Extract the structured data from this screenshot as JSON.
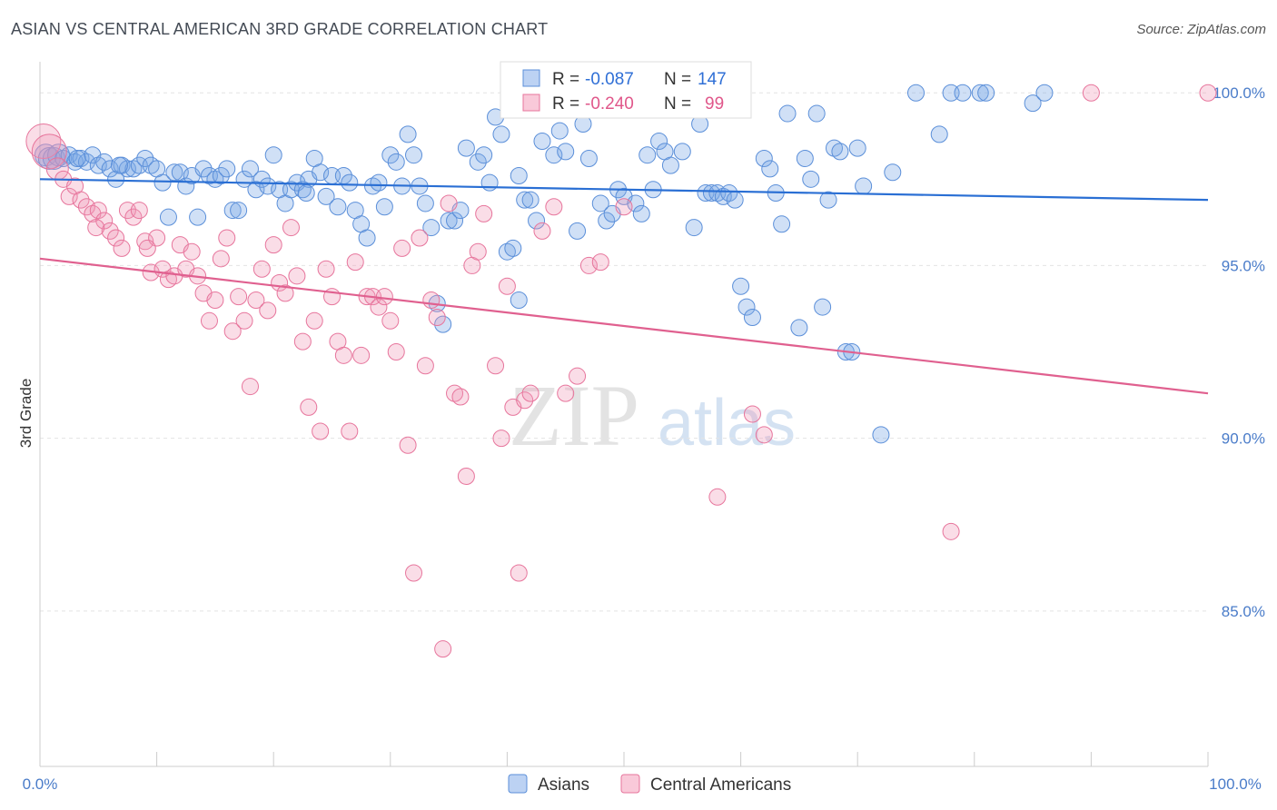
{
  "title": "ASIAN VS CENTRAL AMERICAN 3RD GRADE CORRELATION CHART",
  "source": "Source: ZipAtlas.com",
  "watermark": {
    "zip": "ZIP",
    "atlas": "atlas"
  },
  "chart_data": {
    "type": "scatter",
    "ylabel": "3rd Grade",
    "xlim": [
      0,
      100
    ],
    "ylim": [
      80.5,
      100.9
    ],
    "x_ticks": [
      "0.0%",
      "100.0%"
    ],
    "y_ticks": [
      {
        "value": 100,
        "label": "100.0%"
      },
      {
        "value": 95,
        "label": "95.0%"
      },
      {
        "value": 90,
        "label": "90.0%"
      },
      {
        "value": 85,
        "label": "85.0%"
      }
    ],
    "grid": true,
    "legend_top": [
      {
        "r_label": "R =",
        "r_value": "-0.087",
        "n_label": "N =",
        "n_value": "147",
        "color": "#5b8fd9"
      },
      {
        "r_label": "R =",
        "r_value": "-0.240",
        "n_label": "N =",
        "n_value": "99",
        "color": "#e7759c"
      }
    ],
    "series": [
      {
        "name": "Asians",
        "color": "#5b8fd9",
        "trend": {
          "x": [
            0,
            100
          ],
          "y": [
            97.5,
            96.9
          ]
        },
        "points": [
          [
            0.5,
            98.2
          ],
          [
            0.8,
            98.1
          ],
          [
            1.2,
            98.1
          ],
          [
            1.6,
            98.2
          ],
          [
            2.0,
            98.1
          ],
          [
            2.5,
            98.2
          ],
          [
            3.0,
            98.0
          ],
          [
            3.5,
            98.1
          ],
          [
            4.0,
            98.0
          ],
          [
            4.5,
            98.2
          ],
          [
            5.0,
            97.9
          ],
          [
            5.5,
            98.0
          ],
          [
            6.0,
            97.8
          ],
          [
            6.5,
            97.5
          ],
          [
            7.0,
            97.9
          ],
          [
            7.5,
            97.8
          ],
          [
            8.0,
            97.8
          ],
          [
            8.5,
            97.9
          ],
          [
            9.0,
            98.1
          ],
          [
            9.5,
            97.9
          ],
          [
            10.0,
            97.8
          ],
          [
            10.5,
            97.4
          ],
          [
            11.0,
            96.4
          ],
          [
            11.5,
            97.7
          ],
          [
            12.0,
            97.7
          ],
          [
            12.5,
            97.3
          ],
          [
            13.0,
            97.6
          ],
          [
            13.5,
            96.4
          ],
          [
            14.0,
            97.8
          ],
          [
            14.5,
            97.6
          ],
          [
            15.0,
            97.5
          ],
          [
            15.5,
            97.6
          ],
          [
            16.0,
            97.8
          ],
          [
            16.5,
            96.6
          ],
          [
            17.0,
            96.6
          ],
          [
            17.5,
            97.5
          ],
          [
            18.0,
            97.8
          ],
          [
            18.5,
            97.2
          ],
          [
            19.0,
            97.5
          ],
          [
            19.5,
            97.3
          ],
          [
            20.0,
            98.2
          ],
          [
            20.5,
            97.2
          ],
          [
            21.0,
            96.8
          ],
          [
            21.5,
            97.2
          ],
          [
            22.0,
            97.4
          ],
          [
            22.5,
            97.2
          ],
          [
            23.0,
            97.5
          ],
          [
            23.5,
            98.1
          ],
          [
            24.0,
            97.7
          ],
          [
            24.5,
            97.0
          ],
          [
            25.0,
            97.6
          ],
          [
            25.5,
            96.7
          ],
          [
            26.0,
            97.6
          ],
          [
            27.0,
            96.6
          ],
          [
            27.5,
            96.2
          ],
          [
            28.0,
            95.8
          ],
          [
            28.5,
            97.3
          ],
          [
            29.0,
            97.4
          ],
          [
            29.5,
            96.7
          ],
          [
            30.0,
            98.2
          ],
          [
            30.5,
            98.0
          ],
          [
            31.0,
            97.3
          ],
          [
            31.5,
            98.8
          ],
          [
            32.0,
            98.2
          ],
          [
            32.5,
            97.3
          ],
          [
            33.0,
            96.8
          ],
          [
            33.5,
            96.1
          ],
          [
            34.0,
            93.9
          ],
          [
            34.5,
            93.3
          ],
          [
            35.0,
            96.3
          ],
          [
            35.5,
            96.3
          ],
          [
            36.0,
            96.6
          ],
          [
            36.5,
            98.4
          ],
          [
            37.5,
            98.0
          ],
          [
            38.0,
            98.2
          ],
          [
            38.5,
            97.4
          ],
          [
            39.0,
            99.3
          ],
          [
            39.5,
            98.8
          ],
          [
            40.0,
            95.4
          ],
          [
            40.5,
            95.5
          ],
          [
            41.0,
            97.6
          ],
          [
            41.5,
            96.9
          ],
          [
            42.0,
            96.9
          ],
          [
            42.5,
            96.3
          ],
          [
            43.0,
            98.6
          ],
          [
            44.0,
            98.2
          ],
          [
            44.5,
            98.9
          ],
          [
            45.0,
            98.3
          ],
          [
            46.0,
            96.0
          ],
          [
            46.5,
            99.1
          ],
          [
            47.0,
            98.1
          ],
          [
            48.0,
            96.8
          ],
          [
            48.5,
            96.3
          ],
          [
            49.0,
            96.5
          ],
          [
            49.5,
            97.2
          ],
          [
            50.0,
            97.0
          ],
          [
            51.0,
            96.8
          ],
          [
            51.5,
            96.5
          ],
          [
            52.0,
            98.2
          ],
          [
            52.5,
            97.2
          ],
          [
            53.0,
            98.6
          ],
          [
            53.5,
            98.3
          ],
          [
            54.0,
            97.9
          ],
          [
            55.0,
            98.3
          ],
          [
            56.0,
            96.1
          ],
          [
            56.5,
            99.1
          ],
          [
            57.0,
            97.1
          ],
          [
            57.5,
            97.1
          ],
          [
            58.0,
            97.1
          ],
          [
            58.5,
            97.0
          ],
          [
            59.0,
            97.1
          ],
          [
            59.5,
            96.9
          ],
          [
            60.0,
            94.4
          ],
          [
            60.5,
            93.8
          ],
          [
            61.0,
            93.5
          ],
          [
            62.0,
            98.1
          ],
          [
            62.5,
            97.8
          ],
          [
            63.0,
            97.1
          ],
          [
            63.5,
            96.2
          ],
          [
            64.0,
            99.4
          ],
          [
            65.0,
            93.2
          ],
          [
            65.5,
            98.1
          ],
          [
            66.0,
            97.5
          ],
          [
            66.5,
            99.4
          ],
          [
            67.0,
            93.8
          ],
          [
            67.5,
            96.9
          ],
          [
            68.0,
            98.4
          ],
          [
            68.5,
            98.3
          ],
          [
            69.0,
            92.5
          ],
          [
            69.5,
            92.5
          ],
          [
            70.0,
            98.4
          ],
          [
            70.5,
            97.3
          ],
          [
            72.0,
            90.1
          ],
          [
            73.0,
            97.7
          ],
          [
            75.0,
            100.0
          ],
          [
            77.0,
            98.8
          ],
          [
            78.0,
            100.0
          ],
          [
            79.0,
            100.0
          ],
          [
            80.5,
            100.0
          ],
          [
            81.0,
            100.0
          ],
          [
            85.0,
            99.7
          ],
          [
            86.0,
            100.0
          ],
          [
            3.2,
            98.1
          ],
          [
            6.8,
            97.9
          ],
          [
            22.8,
            97.1
          ],
          [
            26.5,
            97.4
          ],
          [
            41.0,
            94.0
          ]
        ]
      },
      {
        "name": "Central Americans",
        "color": "#e7759c",
        "trend": {
          "x": [
            0,
            100
          ],
          "y": [
            95.2,
            91.3
          ]
        },
        "points": [
          [
            0.3,
            98.6
          ],
          [
            0.8,
            98.3
          ],
          [
            1.5,
            97.8
          ],
          [
            2.0,
            97.5
          ],
          [
            2.5,
            97.0
          ],
          [
            3.0,
            97.3
          ],
          [
            3.5,
            96.9
          ],
          [
            4.0,
            96.7
          ],
          [
            4.5,
            96.5
          ],
          [
            5.0,
            96.6
          ],
          [
            5.5,
            96.3
          ],
          [
            6.0,
            96.0
          ],
          [
            6.5,
            95.8
          ],
          [
            7.0,
            95.5
          ],
          [
            7.5,
            96.6
          ],
          [
            8.0,
            96.4
          ],
          [
            8.5,
            96.6
          ],
          [
            9.0,
            95.7
          ],
          [
            9.5,
            94.8
          ],
          [
            10.0,
            95.8
          ],
          [
            10.5,
            94.9
          ],
          [
            11.0,
            94.6
          ],
          [
            11.5,
            94.7
          ],
          [
            12.0,
            95.6
          ],
          [
            12.5,
            94.9
          ],
          [
            13.0,
            95.4
          ],
          [
            13.5,
            94.7
          ],
          [
            14.0,
            94.2
          ],
          [
            14.5,
            93.4
          ],
          [
            15.0,
            94.0
          ],
          [
            15.5,
            95.2
          ],
          [
            16.0,
            95.8
          ],
          [
            16.5,
            93.1
          ],
          [
            17.0,
            94.1
          ],
          [
            17.5,
            93.4
          ],
          [
            18.0,
            91.5
          ],
          [
            18.5,
            94.0
          ],
          [
            19.0,
            94.9
          ],
          [
            19.5,
            93.7
          ],
          [
            20.0,
            95.6
          ],
          [
            20.5,
            94.5
          ],
          [
            21.0,
            94.2
          ],
          [
            21.5,
            96.1
          ],
          [
            22.0,
            94.7
          ],
          [
            22.5,
            92.8
          ],
          [
            23.0,
            90.9
          ],
          [
            23.5,
            93.4
          ],
          [
            24.0,
            90.2
          ],
          [
            24.5,
            94.9
          ],
          [
            25.0,
            94.1
          ],
          [
            25.5,
            92.8
          ],
          [
            26.0,
            92.4
          ],
          [
            26.5,
            90.2
          ],
          [
            27.0,
            95.1
          ],
          [
            27.5,
            92.4
          ],
          [
            28.0,
            94.1
          ],
          [
            28.5,
            94.1
          ],
          [
            29.0,
            93.8
          ],
          [
            29.5,
            94.1
          ],
          [
            30.0,
            93.4
          ],
          [
            30.5,
            92.5
          ],
          [
            31.0,
            95.5
          ],
          [
            31.5,
            89.8
          ],
          [
            32.0,
            86.1
          ],
          [
            32.5,
            95.8
          ],
          [
            33.0,
            92.1
          ],
          [
            33.5,
            94.0
          ],
          [
            34.0,
            93.5
          ],
          [
            34.5,
            83.9
          ],
          [
            35.0,
            96.8
          ],
          [
            35.5,
            91.3
          ],
          [
            36.0,
            91.2
          ],
          [
            36.5,
            88.9
          ],
          [
            37.0,
            95.0
          ],
          [
            37.5,
            95.4
          ],
          [
            38.0,
            96.5
          ],
          [
            39.0,
            92.1
          ],
          [
            39.5,
            90.0
          ],
          [
            40.0,
            94.4
          ],
          [
            40.5,
            90.9
          ],
          [
            41.0,
            86.1
          ],
          [
            41.5,
            91.1
          ],
          [
            42.0,
            91.3
          ],
          [
            43.0,
            96.0
          ],
          [
            44.0,
            96.7
          ],
          [
            45.0,
            91.3
          ],
          [
            46.0,
            91.8
          ],
          [
            47.0,
            95.0
          ],
          [
            48.0,
            95.1
          ],
          [
            50.0,
            96.7
          ],
          [
            52.0,
            100.0
          ],
          [
            60.0,
            100.0
          ],
          [
            61.0,
            90.7
          ],
          [
            62.0,
            90.1
          ],
          [
            58.0,
            88.3
          ],
          [
            78.0,
            87.3
          ],
          [
            90.0,
            100.0
          ],
          [
            100.0,
            100.0
          ],
          [
            4.8,
            96.1
          ],
          [
            9.2,
            95.5
          ]
        ]
      }
    ]
  }
}
